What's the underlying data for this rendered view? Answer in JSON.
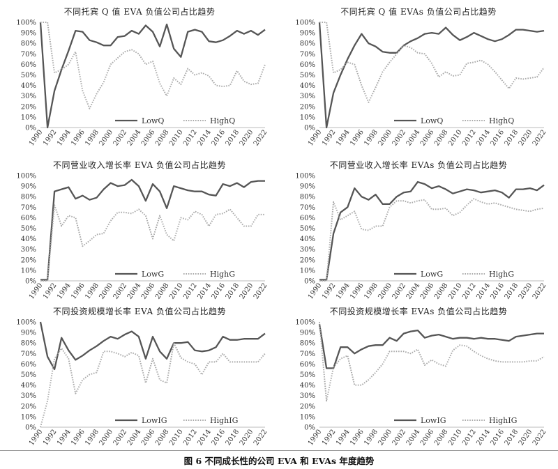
{
  "caption": "图 6  不同成长性的公司 EVA 和 EVAs 年度趋势",
  "colors": {
    "low": "#555555",
    "high": "#aaaaaa",
    "axis": "#bbbbbb",
    "text": "#333333"
  },
  "chart_data": [
    {
      "type": "line",
      "title": "不同托宾 Q 值 EVA 负值公司占比趋势",
      "x": [
        1990,
        1991,
        1992,
        1993,
        1994,
        1995,
        1996,
        1997,
        1998,
        1999,
        2000,
        2001,
        2002,
        2003,
        2004,
        2005,
        2006,
        2007,
        2008,
        2009,
        2010,
        2011,
        2012,
        2013,
        2014,
        2015,
        2016,
        2017,
        2018,
        2019,
        2020,
        2021,
        2022
      ],
      "x_ticks": [
        "1990",
        "1992",
        "1994",
        "1996",
        "1998",
        "2000",
        "2002",
        "2004",
        "2006",
        "2008",
        "2010",
        "2012",
        "2014",
        "2016",
        "2018",
        "2020",
        "2022"
      ],
      "y_ticks": [
        "0%",
        "10%",
        "20%",
        "30%",
        "40%",
        "50%",
        "60%",
        "70%",
        "80%",
        "90%",
        "100%"
      ],
      "ylim": [
        0,
        100
      ],
      "series": [
        {
          "name": "LowQ",
          "style": "solid",
          "values": [
            100,
            0,
            35,
            55,
            73,
            92,
            91,
            83,
            81,
            78,
            78,
            86,
            87,
            92,
            89,
            97,
            91,
            77,
            98,
            75,
            67,
            91,
            93,
            91,
            82,
            81,
            83,
            87,
            92,
            89,
            92,
            88,
            93
          ]
        },
        {
          "name": "HighQ",
          "style": "dotted",
          "values": [
            100,
            100,
            52,
            55,
            60,
            72,
            35,
            18,
            32,
            43,
            60,
            66,
            72,
            74,
            70,
            60,
            63,
            42,
            30,
            47,
            41,
            56,
            50,
            52,
            49,
            40,
            39,
            40,
            54,
            44,
            41,
            42,
            60
          ]
        }
      ],
      "legend": "bottom"
    },
    {
      "type": "line",
      "title": "不同托宾 Q 值 EVAs 负值公司占比趋势",
      "x": [
        1990,
        1991,
        1992,
        1993,
        1994,
        1995,
        1996,
        1997,
        1998,
        1999,
        2000,
        2001,
        2002,
        2003,
        2004,
        2005,
        2006,
        2007,
        2008,
        2009,
        2010,
        2011,
        2012,
        2013,
        2014,
        2015,
        2016,
        2017,
        2018,
        2019,
        2020,
        2021,
        2022
      ],
      "x_ticks": [
        "1990",
        "1992",
        "1994",
        "1996",
        "1998",
        "2000",
        "2002",
        "2004",
        "2006",
        "2008",
        "2010",
        "2012",
        "2014",
        "2016",
        "2018",
        "2020",
        "2022"
      ],
      "y_ticks": [
        "0%",
        "10%",
        "20%",
        "30%",
        "40%",
        "50%",
        "60%",
        "70%",
        "80%",
        "90%",
        "100%"
      ],
      "ylim": [
        0,
        100
      ],
      "series": [
        {
          "name": "LowQ",
          "style": "solid",
          "values": [
            100,
            0,
            33,
            50,
            65,
            78,
            89,
            80,
            77,
            72,
            71,
            71,
            78,
            82,
            85,
            89,
            90,
            89,
            95,
            88,
            83,
            86,
            90,
            87,
            84,
            82,
            84,
            88,
            93,
            93,
            92,
            91,
            92
          ]
        },
        {
          "name": "HighQ",
          "style": "dotted",
          "values": [
            100,
            100,
            52,
            55,
            62,
            60,
            40,
            24,
            38,
            53,
            62,
            70,
            78,
            76,
            71,
            70,
            61,
            48,
            53,
            49,
            50,
            61,
            62,
            64,
            60,
            53,
            45,
            37,
            47,
            46,
            47,
            48,
            57
          ]
        }
      ],
      "legend": "bottom"
    },
    {
      "type": "line",
      "title": "不同营业收入增长率 EVA 负值公司占比趋势",
      "x": [
        1990,
        1991,
        1992,
        1993,
        1994,
        1995,
        1996,
        1997,
        1998,
        1999,
        2000,
        2001,
        2002,
        2003,
        2004,
        2005,
        2006,
        2007,
        2008,
        2009,
        2010,
        2011,
        2012,
        2013,
        2014,
        2015,
        2016,
        2017,
        2018,
        2019,
        2020,
        2021,
        2022
      ],
      "x_ticks": [
        "1990",
        "1992",
        "1994",
        "1996",
        "1998",
        "2000",
        "2002",
        "2004",
        "2006",
        "2008",
        "2010",
        "2012",
        "2014",
        "2016",
        "2018",
        "2020",
        "2022"
      ],
      "y_ticks": [
        "0%",
        "10%",
        "20%",
        "30%",
        "40%",
        "50%",
        "60%",
        "70%",
        "80%",
        "90%",
        "100%"
      ],
      "ylim": [
        0,
        100
      ],
      "series": [
        {
          "name": "LowG",
          "style": "solid",
          "values": [
            1,
            1,
            85,
            87,
            89,
            78,
            81,
            77,
            79,
            87,
            93,
            90,
            91,
            96,
            90,
            76,
            92,
            85,
            69,
            90,
            88,
            86,
            85,
            85,
            82,
            81,
            92,
            90,
            93,
            89,
            94,
            95,
            95
          ]
        },
        {
          "name": "HighG",
          "style": "dotted",
          "values": [
            0,
            0,
            72,
            52,
            62,
            60,
            33,
            38,
            44,
            45,
            57,
            65,
            65,
            64,
            68,
            62,
            40,
            62,
            44,
            38,
            60,
            58,
            66,
            63,
            52,
            63,
            64,
            68,
            60,
            52,
            52,
            63,
            63
          ]
        }
      ],
      "legend": "bottom"
    },
    {
      "type": "line",
      "title": "不同营业收入增长率 EVAs 负值公司占比趋势",
      "x": [
        1990,
        1991,
        1992,
        1993,
        1994,
        1995,
        1996,
        1997,
        1998,
        1999,
        2000,
        2001,
        2002,
        2003,
        2004,
        2005,
        2006,
        2007,
        2008,
        2009,
        2010,
        2011,
        2012,
        2013,
        2014,
        2015,
        2016,
        2017,
        2018,
        2019,
        2020,
        2021,
        2022
      ],
      "x_ticks": [
        "1990",
        "1992",
        "1994",
        "1996",
        "1998",
        "2000",
        "2002",
        "2004",
        "2006",
        "2008",
        "2010",
        "2012",
        "2014",
        "2016",
        "2018",
        "2020",
        "2022"
      ],
      "y_ticks": [
        "0%",
        "10%",
        "20%",
        "30%",
        "40%",
        "50%",
        "60%",
        "70%",
        "80%",
        "90%",
        "100%"
      ],
      "ylim": [
        0,
        100
      ],
      "series": [
        {
          "name": "LowG",
          "style": "solid",
          "values": [
            1,
            1,
            45,
            65,
            70,
            88,
            80,
            77,
            82,
            73,
            73,
            80,
            84,
            85,
            94,
            92,
            88,
            90,
            87,
            83,
            85,
            87,
            86,
            84,
            85,
            86,
            84,
            79,
            87,
            87,
            88,
            86,
            91
          ]
        },
        {
          "name": "HighG",
          "style": "dotted",
          "values": [
            0,
            0,
            75,
            58,
            62,
            66,
            49,
            48,
            52,
            52,
            70,
            76,
            76,
            74,
            76,
            77,
            68,
            68,
            69,
            62,
            65,
            72,
            78,
            75,
            73,
            74,
            72,
            70,
            68,
            67,
            66,
            68,
            69
          ]
        }
      ],
      "legend": "bottom"
    },
    {
      "type": "line",
      "title": "不同投资规模增长率 EVA 负值公司占比趋势",
      "x": [
        1990,
        1991,
        1992,
        1993,
        1994,
        1995,
        1996,
        1997,
        1998,
        1999,
        2000,
        2001,
        2002,
        2003,
        2004,
        2005,
        2006,
        2007,
        2008,
        2009,
        2010,
        2011,
        2012,
        2013,
        2014,
        2015,
        2016,
        2017,
        2018,
        2019,
        2020,
        2021,
        2022
      ],
      "x_ticks": [
        "1990",
        "1992",
        "1994",
        "1996",
        "1998",
        "2000",
        "2002",
        "2004",
        "2006",
        "2008",
        "2010",
        "2012",
        "2014",
        "2016",
        "2018",
        "2020",
        "2022"
      ],
      "y_ticks": [
        "0%",
        "10%",
        "20%",
        "30%",
        "40%",
        "50%",
        "60%",
        "70%",
        "80%",
        "90%",
        "100%"
      ],
      "ylim": [
        0,
        100
      ],
      "series": [
        {
          "name": "LowIG",
          "style": "solid",
          "values": [
            100,
            67,
            55,
            85,
            73,
            64,
            68,
            73,
            77,
            82,
            86,
            84,
            88,
            91,
            86,
            65,
            86,
            72,
            65,
            80,
            80,
            81,
            73,
            72,
            73,
            76,
            86,
            83,
            83,
            84,
            84,
            84,
            89
          ]
        },
        {
          "name": "HighIG",
          "style": "dotted",
          "values": [
            0,
            25,
            65,
            75,
            65,
            32,
            45,
            50,
            52,
            72,
            72,
            70,
            67,
            71,
            68,
            42,
            65,
            45,
            42,
            80,
            66,
            62,
            60,
            50,
            62,
            62,
            70,
            62,
            62,
            62,
            62,
            62,
            70
          ]
        }
      ],
      "legend": "bottom"
    },
    {
      "type": "line",
      "title": "不同投资规模增长率 EVAs 负值公司占比趋势",
      "x": [
        1990,
        1991,
        1992,
        1993,
        1994,
        1995,
        1996,
        1997,
        1998,
        1999,
        2000,
        2001,
        2002,
        2003,
        2004,
        2005,
        2006,
        2007,
        2008,
        2009,
        2010,
        2011,
        2012,
        2013,
        2014,
        2015,
        2016,
        2017,
        2018,
        2019,
        2020,
        2021,
        2022
      ],
      "x_ticks": [
        "1990",
        "1992",
        "1994",
        "1996",
        "1998",
        "2000",
        "2002",
        "2004",
        "2006",
        "2008",
        "2010",
        "2012",
        "2014",
        "2016",
        "2018",
        "2020",
        "2022"
      ],
      "y_ticks": [
        "0%",
        "10%",
        "20%",
        "30%",
        "40%",
        "50%",
        "60%",
        "70%",
        "80%",
        "90%",
        "100%"
      ],
      "ylim": [
        0,
        100
      ],
      "series": [
        {
          "name": "LowIG",
          "style": "solid",
          "values": [
            98,
            56,
            56,
            76,
            76,
            70,
            74,
            77,
            78,
            78,
            85,
            82,
            89,
            91,
            92,
            85,
            87,
            88,
            86,
            84,
            85,
            85,
            84,
            85,
            84,
            84,
            83,
            82,
            86,
            87,
            88,
            89,
            89
          ]
        },
        {
          "name": "HighIG",
          "style": "dotted",
          "values": [
            100,
            25,
            57,
            65,
            68,
            40,
            40,
            45,
            52,
            60,
            72,
            72,
            72,
            70,
            74,
            59,
            64,
            60,
            58,
            73,
            78,
            77,
            72,
            68,
            65,
            63,
            62,
            62,
            62,
            62,
            63,
            63,
            67
          ]
        }
      ],
      "legend": "bottom"
    }
  ]
}
